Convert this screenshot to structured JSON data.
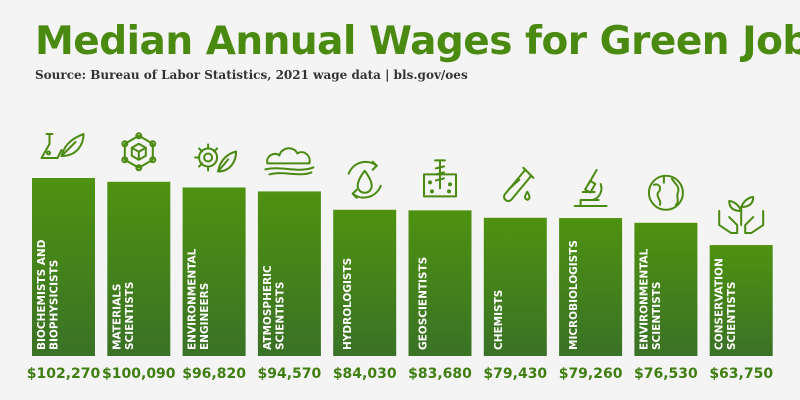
{
  "title": "Median Annual Wages for Green Jobs",
  "subtitle": "Source: Bureau of Labor Statistics, 2021 wage data | bls.gov/oes",
  "colors": {
    "title": "#4a8a10",
    "bar_top": "#4e9210",
    "bar_bottom": "#3a7226",
    "value": "#3f7f12",
    "background": "#f4f4f4"
  },
  "chart_data": {
    "type": "bar",
    "title": "Median Annual Wages for Green Jobs",
    "categories": [
      [
        "BIOCHEMISTS AND",
        "BIOPHYSICISTS"
      ],
      [
        "MATERIALS",
        "SCIENTISTS"
      ],
      [
        "ENVIRONMENTAL",
        "ENGINEERS"
      ],
      [
        "ATMOSPHERIC",
        "SCIENTISTS"
      ],
      [
        "HYDROLOGISTS"
      ],
      [
        "GEOSCIENTISTS"
      ],
      [
        "CHEMISTS"
      ],
      [
        "MICROBIOLOGISTS"
      ],
      [
        "ENVIRONMENTAL",
        "SCIENTISTS"
      ],
      [
        "CONSERVATION",
        "SCIENTISTS"
      ]
    ],
    "values": [
      102270,
      100090,
      96820,
      94570,
      84030,
      83680,
      79430,
      79260,
      76530,
      63750
    ],
    "value_labels": [
      "$102,270",
      "$100,090",
      "$96,820",
      "$94,570",
      "$84,030",
      "$83,680",
      "$79,430",
      "$79,260",
      "$76,530",
      "$63,750"
    ],
    "icons": [
      "flask-leaf-icon",
      "molecule-cube-icon",
      "gear-leaf-icon",
      "cloud-wind-icon",
      "water-cycle-icon",
      "soil-drill-icon",
      "test-tube-icon",
      "microscope-icon",
      "globe-leaf-icon",
      "hands-plant-icon"
    ],
    "xlabel": "",
    "ylabel": "",
    "grid": false,
    "legend": "none"
  }
}
